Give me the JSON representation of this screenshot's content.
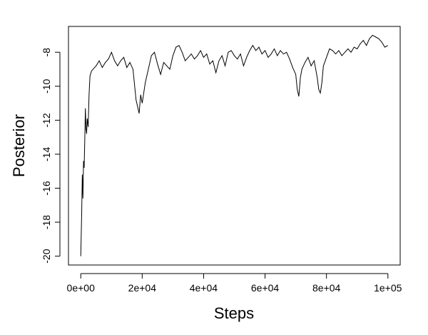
{
  "chart_data": {
    "type": "line",
    "x_label": "Steps",
    "y_label": "Posterior",
    "xlim": [
      -4000,
      104000
    ],
    "ylim": [
      -20.52,
      -6.48
    ],
    "xticks": [
      {
        "value": 0,
        "label": "0e+00"
      },
      {
        "value": 20000,
        "label": "2e+04"
      },
      {
        "value": 40000,
        "label": "4e+04"
      },
      {
        "value": 60000,
        "label": "6e+04"
      },
      {
        "value": 80000,
        "label": "8e+04"
      },
      {
        "value": 100000,
        "label": "1e+05"
      }
    ],
    "yticks": [
      -20,
      -18,
      -16,
      -14,
      -12,
      -10,
      -8
    ],
    "color": "#000000",
    "x": [
      0,
      300,
      500,
      700,
      900,
      1100,
      1300,
      1500,
      1700,
      1900,
      2100,
      2400,
      2700,
      3000,
      3500,
      4000,
      5000,
      6000,
      7000,
      8000,
      9000,
      10000,
      11000,
      12000,
      13000,
      14000,
      15000,
      16000,
      17000,
      18000,
      18500,
      19000,
      19500,
      20000,
      21000,
      22000,
      23000,
      24000,
      25000,
      26000,
      27000,
      28000,
      29000,
      30000,
      31000,
      32000,
      33000,
      34000,
      35000,
      36000,
      37000,
      38000,
      39000,
      40000,
      41000,
      42000,
      43000,
      44000,
      45000,
      46000,
      47000,
      48000,
      49000,
      50000,
      51000,
      52000,
      53000,
      54000,
      55000,
      56000,
      57000,
      58000,
      59000,
      60000,
      61000,
      62000,
      63000,
      64000,
      65000,
      66000,
      67000,
      68000,
      69000,
      70000,
      70500,
      71000,
      71500,
      72000,
      73000,
      74000,
      75000,
      76000,
      77000,
      77500,
      78000,
      78500,
      79000,
      80000,
      81000,
      82000,
      83000,
      84000,
      85000,
      86000,
      87000,
      88000,
      89000,
      90000,
      91000,
      92000,
      93000,
      94000,
      95000,
      96000,
      97000,
      98000,
      99000,
      100000
    ],
    "values": [
      -20,
      -17.5,
      -15.2,
      -16.6,
      -14.4,
      -14.8,
      -13.2,
      -11.3,
      -12.5,
      -12.8,
      -11.9,
      -12.4,
      -10.5,
      -9.4,
      -9.1,
      -9.0,
      -8.8,
      -8.5,
      -8.9,
      -8.6,
      -8.4,
      -8.0,
      -8.5,
      -8.8,
      -8.5,
      -8.3,
      -8.9,
      -8.6,
      -9.0,
      -10.8,
      -11.2,
      -11.6,
      -10.5,
      -11.0,
      -9.8,
      -9.0,
      -8.2,
      -8.0,
      -8.7,
      -9.3,
      -8.6,
      -8.8,
      -9.0,
      -8.2,
      -7.7,
      -7.6,
      -8.0,
      -8.5,
      -8.3,
      -8.1,
      -8.4,
      -8.2,
      -7.9,
      -8.3,
      -8.1,
      -8.7,
      -8.5,
      -9.2,
      -8.5,
      -8.2,
      -8.8,
      -8.0,
      -7.9,
      -8.2,
      -8.4,
      -8.1,
      -8.8,
      -8.3,
      -7.9,
      -7.6,
      -7.9,
      -7.7,
      -8.1,
      -7.9,
      -8.3,
      -8.1,
      -7.8,
      -8.2,
      -7.9,
      -8.1,
      -8.0,
      -8.4,
      -8.9,
      -9.3,
      -10.2,
      -10.6,
      -9.5,
      -9.0,
      -8.6,
      -8.3,
      -8.8,
      -8.5,
      -9.5,
      -10.2,
      -10.4,
      -9.8,
      -8.8,
      -8.3,
      -7.8,
      -7.9,
      -8.1,
      -7.9,
      -8.2,
      -8.0,
      -7.8,
      -8.0,
      -7.7,
      -7.8,
      -7.5,
      -7.3,
      -7.6,
      -7.2,
      -7.0,
      -7.1,
      -7.2,
      -7.4,
      -7.7,
      -7.6
    ]
  }
}
